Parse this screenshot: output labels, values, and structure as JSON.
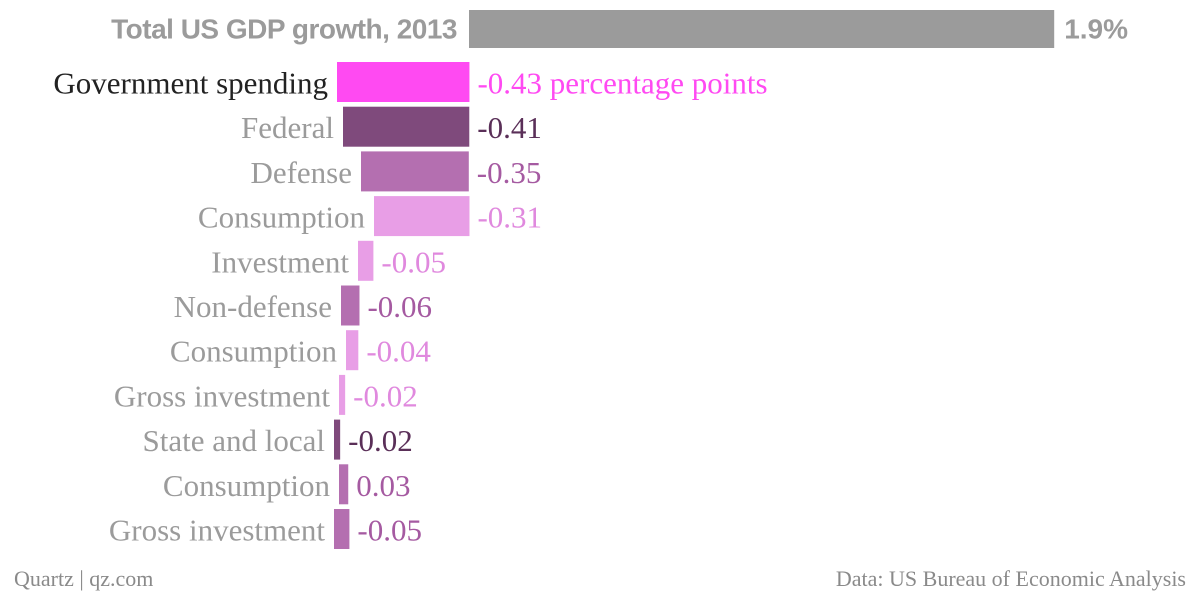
{
  "chart_data": {
    "type": "bar",
    "orientation": "horizontal",
    "total": {
      "label": "Total US GDP growth, 2013",
      "value": 1.9,
      "value_label": "1.9%",
      "color": "#9b9b9b"
    },
    "rows": [
      {
        "label": "Government spending",
        "value": -0.43,
        "value_label": "-0.43 percentage points",
        "color": "#ff4af2",
        "label_color": "#222222",
        "value_color": "#ff4af2"
      },
      {
        "label": "Federal",
        "value": -0.41,
        "value_label": "-0.41",
        "color": "#7f4a7c",
        "label_color": "#9b9b9b",
        "value_color": "#5a2f58"
      },
      {
        "label": "Defense",
        "value": -0.35,
        "value_label": "-0.35",
        "color": "#b46fb0",
        "label_color": "#9b9b9b",
        "value_color": "#a55aa1"
      },
      {
        "label": "Consumption",
        "value": -0.31,
        "value_label": "-0.31",
        "color": "#e89ee6",
        "label_color": "#9b9b9b",
        "value_color": "#e089de"
      },
      {
        "label": "Investment",
        "value": -0.05,
        "value_label": "-0.05",
        "color": "#e89ee6",
        "label_color": "#9b9b9b",
        "value_color": "#e089de"
      },
      {
        "label": "Non-defense",
        "value": -0.06,
        "value_label": "-0.06",
        "color": "#b46fb0",
        "label_color": "#9b9b9b",
        "value_color": "#a55aa1"
      },
      {
        "label": "Consumption",
        "value": -0.04,
        "value_label": "-0.04",
        "color": "#e89ee6",
        "label_color": "#9b9b9b",
        "value_color": "#e089de"
      },
      {
        "label": "Gross investment",
        "value": -0.02,
        "value_label": "-0.02",
        "color": "#e89ee6",
        "label_color": "#9b9b9b",
        "value_color": "#e089de"
      },
      {
        "label": "State and local",
        "value": -0.02,
        "value_label": "-0.02",
        "color": "#7f4a7c",
        "label_color": "#9b9b9b",
        "value_color": "#5a2f58"
      },
      {
        "label": "Consumption",
        "value": 0.03,
        "value_label": "0.03",
        "color": "#b46fb0",
        "label_color": "#9b9b9b",
        "value_color": "#a55aa1"
      },
      {
        "label": "Gross investment",
        "value": -0.05,
        "value_label": "-0.05",
        "color": "#b46fb0",
        "label_color": "#9b9b9b",
        "value_color": "#a55aa1"
      }
    ]
  },
  "footer": {
    "credit": "Quartz | qz.com",
    "source": "Data: US Bureau of Economic Analysis"
  }
}
